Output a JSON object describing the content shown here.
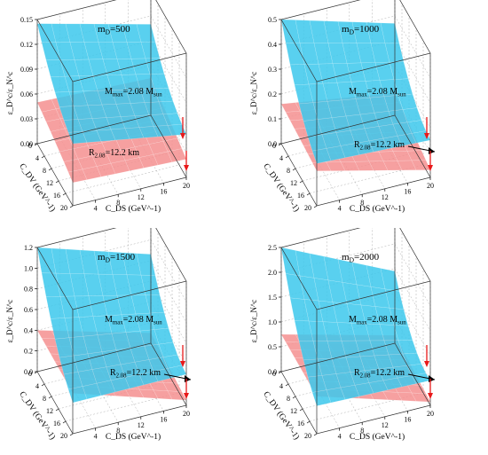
{
  "colors": {
    "upper_surface": "#3cc8ec",
    "lower_surface": "#f48f8f",
    "arrow": "#e8191a",
    "box_edge": "#333333",
    "grid": "#9a9a9a"
  },
  "chart_data": [
    {
      "type": "surface3d",
      "title": "m_D=500",
      "zlabel": "ε_D^c/ε_N^c",
      "xlabel": "C_DV (GeV^-1)",
      "ylabel": "C_DS (GeV^-1)",
      "x_ticks": [
        "0",
        "4",
        "8",
        "12",
        "16",
        "20"
      ],
      "y_ticks": [
        "4",
        "8",
        "12",
        "16",
        "20"
      ],
      "z_ticks": [
        "0.00",
        "0.03",
        "0.06",
        "0.09",
        "0.12",
        "0.15"
      ],
      "zlim": [
        0,
        0.15
      ],
      "series": [
        {
          "name": "M_max=2.08 M_sun",
          "corner_values": {
            "cdv0_cds0": 0.145,
            "cdv0_cds20": 0.11,
            "cdv20_cds0": 0.075,
            "cdv20_cds20": 0.052
          }
        },
        {
          "name": "R_2.08=12.2 km",
          "corner_values": {
            "cdv0_cds0": 0.05,
            "cdv0_cds20": 0.045,
            "cdv20_cds0": 0.028,
            "cdv20_cds20": 0.022
          }
        }
      ],
      "annotations": [
        "m_D=500",
        "M_max=2.08 M_sun",
        "R_2.08=12.2 km"
      ],
      "arrows": 2
    },
    {
      "type": "surface3d",
      "title": "m_D=1000",
      "zlabel": "ε_D^c/ε_N^c",
      "xlabel": "C_DV (GeV^-1)",
      "ylabel": "C_DS (GeV^-1)",
      "x_ticks": [
        "0",
        "4",
        "8",
        "12",
        "16",
        "20"
      ],
      "y_ticks": [
        "4",
        "8",
        "12",
        "16",
        "20"
      ],
      "z_ticks": [
        "0.0",
        "0.1",
        "0.2",
        "0.3",
        "0.4",
        "0.5"
      ],
      "zlim": [
        0,
        0.5
      ],
      "series": [
        {
          "name": "M_max=2.08 M_sun",
          "corner_values": {
            "cdv0_cds0": 0.5,
            "cdv0_cds20": 0.37,
            "cdv20_cds0": 0.17,
            "cdv20_cds20": 0.15
          }
        },
        {
          "name": "R_2.08=12.2 km",
          "corner_values": {
            "cdv0_cds0": 0.16,
            "cdv0_cds20": 0.09,
            "cdv20_cds0": 0.14,
            "cdv20_cds20": 0.03
          }
        }
      ],
      "annotations": [
        "m_D=1000",
        "M_max=2.08 M_sun",
        "R_2.08=12.2 km"
      ],
      "arrows": 2
    },
    {
      "type": "surface3d",
      "title": "m_D=1500",
      "zlabel": "ε_D^c/ε_N^c",
      "xlabel": "C_DV (GeV^-1)",
      "ylabel": "C_DS (GeV^-1)",
      "x_ticks": [
        "0",
        "4",
        "8",
        "12",
        "16",
        "20"
      ],
      "y_ticks": [
        "4",
        "8",
        "12",
        "16",
        "20"
      ],
      "z_ticks": [
        "0.0",
        "0.2",
        "0.4",
        "0.6",
        "0.8",
        "1.0",
        "1.2"
      ],
      "zlim": [
        0,
        1.2
      ],
      "series": [
        {
          "name": "M_max=2.08 M_sun",
          "corner_values": {
            "cdv0_cds0": 1.2,
            "cdv0_cds20": 0.86,
            "cdv20_cds0": 0.3,
            "cdv20_cds20": 0.3
          }
        },
        {
          "name": "R_2.08=12.2 km",
          "corner_values": {
            "cdv0_cds0": 0.4,
            "cdv0_cds20": 0.1,
            "cdv20_cds0": 0.39,
            "cdv20_cds20": 0.05
          }
        }
      ],
      "annotations": [
        "m_D=1500",
        "M_max=2.08 M_sun",
        "R_2.08=12.2 km"
      ],
      "arrows": 2
    },
    {
      "type": "surface3d",
      "title": "m_D=2000",
      "zlabel": "ε_D^c/ε_N^c",
      "xlabel": "C_DV (GeV^-1)",
      "ylabel": "C_DS (GeV^-1)",
      "x_ticks": [
        "0",
        "4",
        "8",
        "12",
        "16",
        "20"
      ],
      "y_ticks": [
        "4",
        "8",
        "12",
        "16",
        "20"
      ],
      "z_ticks": [
        "0.0",
        "0.5",
        "1.0",
        "1.5",
        "2.0",
        "2.5"
      ],
      "zlim": [
        0,
        2.5
      ],
      "series": [
        {
          "name": "M_max=2.08 M_sun",
          "corner_values": {
            "cdv0_cds0": 2.5,
            "cdv0_cds20": 1.45,
            "cdv20_cds0": 0.56,
            "cdv20_cds20": 0.5
          }
        },
        {
          "name": "R_2.08=12.2 km",
          "corner_values": {
            "cdv0_cds0": 0.75,
            "cdv0_cds20": 0.16,
            "cdv20_cds0": 0.75,
            "cdv20_cds20": 0.07
          }
        }
      ],
      "annotations": [
        "m_D=2000",
        "M_max=2.08 M_sun",
        "R_2.08=12.2 km"
      ],
      "arrows": 2
    }
  ]
}
